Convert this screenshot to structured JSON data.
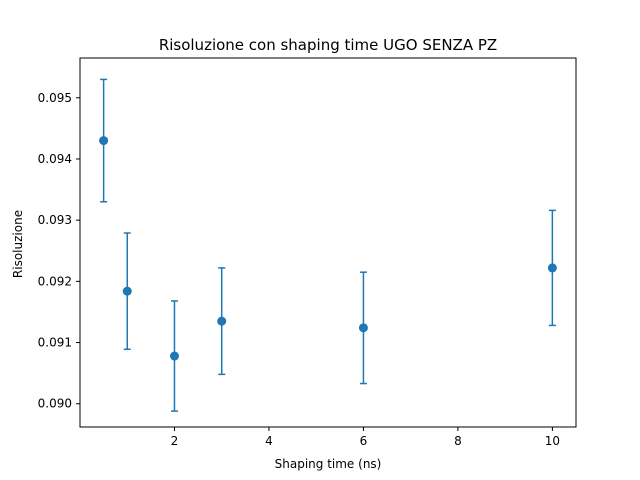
{
  "chart_data": {
    "type": "scatter",
    "title": "Risoluzione con shaping time UGO SENZA PZ",
    "xlabel": "Shaping time (ns)",
    "ylabel": "Risoluzione",
    "xlim": [
      0.0,
      10.5
    ],
    "ylim": [
      0.08962,
      0.09565
    ],
    "xticks": [
      2,
      4,
      6,
      8,
      10
    ],
    "xtick_labels": [
      "2",
      "4",
      "6",
      "8",
      "10"
    ],
    "yticks": [
      0.09,
      0.091,
      0.092,
      0.093,
      0.094,
      0.095
    ],
    "ytick_labels": [
      "0.090",
      "0.091",
      "0.092",
      "0.093",
      "0.094",
      "0.095"
    ],
    "grid": false,
    "color": "#1f77b4",
    "error_bars": true,
    "series": [
      {
        "x": [
          0.5,
          1,
          2,
          3,
          6,
          10
        ],
        "y": [
          0.0943,
          0.09184,
          0.09078,
          0.09135,
          0.09124,
          0.09222
        ],
        "yerr": [
          0.001,
          0.00095,
          0.0009,
          0.00087,
          0.00091,
          0.00094
        ]
      }
    ]
  }
}
